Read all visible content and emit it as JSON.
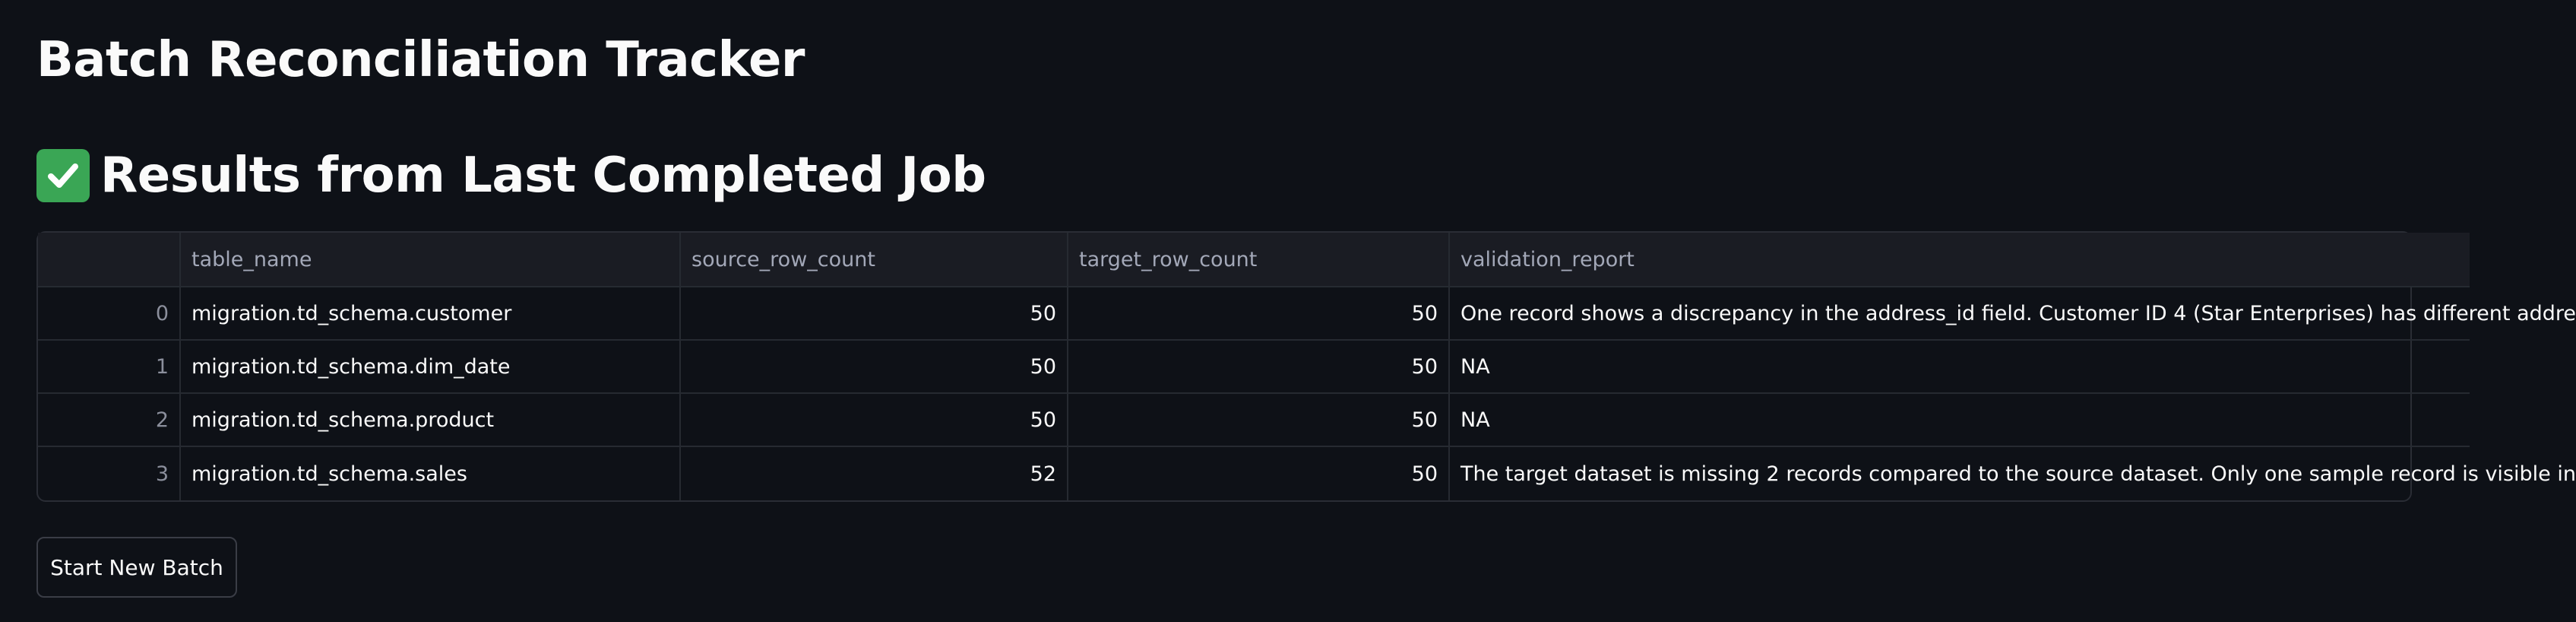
{
  "page": {
    "title": "Batch Reconciliation Tracker",
    "subheader": "Results from Last Completed Job",
    "subheader_icon": "check-mark-button-icon"
  },
  "table": {
    "columns": [
      "",
      "table_name",
      "source_row_count",
      "target_row_count",
      "validation_report"
    ],
    "rows": [
      {
        "index": "0",
        "table_name": "migration.td_schema.customer",
        "source_row_count": "50",
        "target_row_count": "50",
        "validation_report": "One record shows a discrepancy in the address_id field. Customer ID 4 (Star Enterprises) has different addre"
      },
      {
        "index": "1",
        "table_name": "migration.td_schema.dim_date",
        "source_row_count": "50",
        "target_row_count": "50",
        "validation_report": "NA"
      },
      {
        "index": "2",
        "table_name": "migration.td_schema.product",
        "source_row_count": "50",
        "target_row_count": "50",
        "validation_report": "NA"
      },
      {
        "index": "3",
        "table_name": "migration.td_schema.sales",
        "source_row_count": "52",
        "target_row_count": "50",
        "validation_report": "The target dataset is missing 2 records compared to the source dataset. Only one sample record is visible in"
      }
    ]
  },
  "actions": {
    "start_new_batch": "Start New Batch"
  },
  "colors": {
    "background": "#0e1117",
    "header_bg": "#1a1c23",
    "check_green": "#3aa655"
  }
}
